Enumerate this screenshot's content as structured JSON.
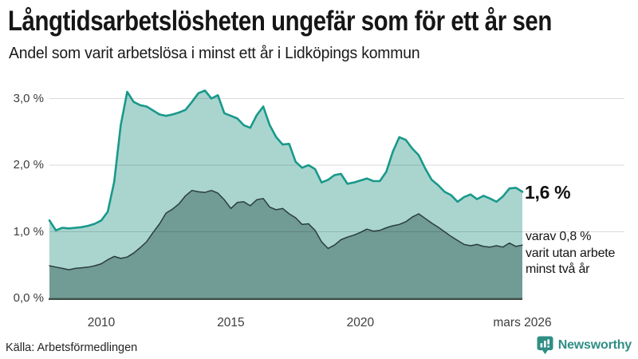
{
  "title": "Långtidsarbetslösheten ungefär som för ett år sen",
  "subtitle": "Andel som varit arbetslösa i minst ett år i Lidköpings kommun",
  "source": "Källa: Arbetsförmedlingen",
  "logo": {
    "text": "Newsworthy"
  },
  "annotations": {
    "latest_total": "1,6 %",
    "two_year_note_lines": [
      "varav 0,8 %",
      "varit utan arbete",
      "minst två år"
    ]
  },
  "colors": {
    "line_total": "#19998a",
    "fill_total": "#aad5cf",
    "line_two_year": "#2b3e3b",
    "fill_two_year": "#719b95",
    "baseline": "#3f4e48",
    "gridline": "rgba(0,0,0,0.14)",
    "brand_teal": "#2f8e84",
    "text": "#1a1a1a"
  },
  "chart_data": {
    "type": "area",
    "title": "Långtidsarbetslösheten ungefär som för ett år sen",
    "subtitle": "Andel som varit arbetslösa i minst ett år i Lidköpings kommun",
    "x_unit": "decimal_year",
    "x_start": 2008.0,
    "x_step": 0.25,
    "x_axis": {
      "range": [
        2008.0,
        2026.25
      ],
      "ticks": [
        {
          "label": "2010",
          "year": 2010
        },
        {
          "label": "2015",
          "year": 2015
        },
        {
          "label": "2020",
          "year": 2020
        },
        {
          "label": "mars 2026",
          "year": 2026.25
        }
      ]
    },
    "y_axis": {
      "range": [
        0,
        3.3
      ],
      "unit": "%",
      "grid": true,
      "ticks": [
        {
          "label": "0,0 %",
          "value": 0
        },
        {
          "label": "1,0 %",
          "value": 1
        },
        {
          "label": "2,0 %",
          "value": 2
        },
        {
          "label": "3,0 %",
          "value": 3
        }
      ]
    },
    "series": [
      {
        "name": "Arbetslösa minst ett år",
        "latest_value": 1.6,
        "values": [
          1.17,
          1.02,
          1.06,
          1.05,
          1.06,
          1.07,
          1.09,
          1.12,
          1.17,
          1.3,
          1.75,
          2.6,
          3.1,
          2.95,
          2.9,
          2.88,
          2.82,
          2.76,
          2.74,
          2.76,
          2.79,
          2.83,
          2.95,
          3.08,
          3.12,
          3.0,
          3.05,
          2.78,
          2.74,
          2.7,
          2.6,
          2.56,
          2.75,
          2.88,
          2.6,
          2.42,
          2.31,
          2.32,
          2.05,
          1.96,
          2.0,
          1.94,
          1.74,
          1.78,
          1.85,
          1.87,
          1.72,
          1.74,
          1.77,
          1.8,
          1.76,
          1.76,
          1.9,
          2.2,
          2.42,
          2.38,
          2.25,
          2.15,
          1.95,
          1.78,
          1.7,
          1.6,
          1.55,
          1.45,
          1.52,
          1.56,
          1.49,
          1.54,
          1.5,
          1.45,
          1.53,
          1.65,
          1.66,
          1.6
        ]
      },
      {
        "name": "varav arbetslösa minst två år",
        "latest_value": 0.8,
        "values": [
          0.49,
          0.47,
          0.45,
          0.43,
          0.45,
          0.46,
          0.47,
          0.49,
          0.52,
          0.58,
          0.63,
          0.6,
          0.62,
          0.68,
          0.76,
          0.85,
          0.99,
          1.12,
          1.28,
          1.34,
          1.42,
          1.54,
          1.62,
          1.6,
          1.59,
          1.62,
          1.58,
          1.48,
          1.35,
          1.44,
          1.45,
          1.39,
          1.48,
          1.5,
          1.37,
          1.33,
          1.35,
          1.27,
          1.21,
          1.11,
          1.12,
          1.02,
          0.85,
          0.75,
          0.8,
          0.88,
          0.92,
          0.95,
          0.99,
          1.04,
          1.01,
          1.02,
          1.06,
          1.09,
          1.11,
          1.15,
          1.22,
          1.27,
          1.2,
          1.13,
          1.07,
          1.0,
          0.93,
          0.87,
          0.81,
          0.79,
          0.81,
          0.78,
          0.77,
          0.79,
          0.77,
          0.83,
          0.78,
          0.8
        ]
      }
    ]
  }
}
